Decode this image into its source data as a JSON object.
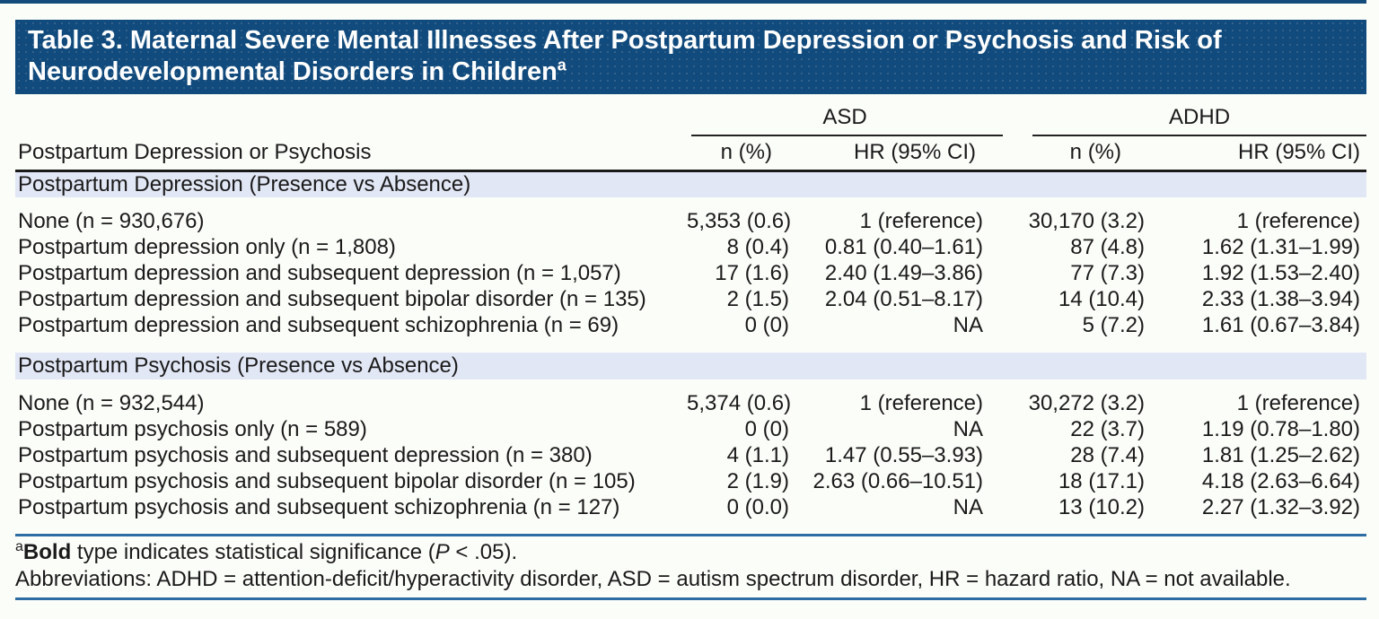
{
  "title": {
    "line1": "Table 3. Maternal Severe Mental Illnesses After Postpartum Depression or Psychosis and Risk of",
    "line2": "Neurodevelopmental Disorders in Children",
    "superscript": "a"
  },
  "columns": {
    "stub": "Postpartum Depression or Psychosis",
    "groups": [
      {
        "label": "ASD"
      },
      {
        "label": "ADHD"
      }
    ],
    "subheaders": [
      "n (%)",
      "HR (95% CI)",
      "n (%)",
      "HR (95% CI)"
    ]
  },
  "sections": [
    {
      "header": "Postpartum Depression (Presence vs Absence)",
      "rows": [
        {
          "label": "None (n = 930,676)",
          "cells": [
            {
              "t": "5,353 (0.6)"
            },
            {
              "t": "1 (reference)"
            },
            {
              "t": "30,170 (3.2)"
            },
            {
              "t": "1 (reference)"
            }
          ]
        },
        {
          "label": "Postpartum depression only (n = 1,808)",
          "cells": [
            {
              "t": "8 (0.4)"
            },
            {
              "t": "0.81 (0.40–1.61)"
            },
            {
              "t": "87 (4.8)"
            },
            {
              "t": "1.62 (1.31–1.99)",
              "bold": true
            }
          ]
        },
        {
          "label": "Postpartum depression and subsequent depression (n = 1,057)",
          "cells": [
            {
              "t": "17 (1.6)"
            },
            {
              "t": "2.40 (1.49–3.86)",
              "bold": true
            },
            {
              "t": "77 (7.3)"
            },
            {
              "t": "1.92 (1.53–2.40)",
              "bold": true
            }
          ]
        },
        {
          "label": "Postpartum depression and subsequent bipolar disorder (n = 135)",
          "cells": [
            {
              "t": "2 (1.5)"
            },
            {
              "t": "2.04 (0.51–8.17)"
            },
            {
              "t": "14 (10.4)"
            },
            {
              "t": "2.33 (1.38–3.94)",
              "bold": true
            }
          ]
        },
        {
          "label": "Postpartum depression and subsequent schizophrenia (n = 69)",
          "cells": [
            {
              "t": "0 (0)"
            },
            {
              "t": "NA"
            },
            {
              "t": "5 (7.2)"
            },
            {
              "t": "1.61 (0.67–3.84)"
            }
          ]
        }
      ]
    },
    {
      "header": "Postpartum Psychosis (Presence vs Absence)",
      "rows": [
        {
          "label": "None (n = 932,544)",
          "cells": [
            {
              "t": "5,374 (0.6)"
            },
            {
              "t": "1 (reference)"
            },
            {
              "t": "30,272 (3.2)"
            },
            {
              "t": "1 (reference)"
            }
          ]
        },
        {
          "label": "Postpartum psychosis only (n = 589)",
          "cells": [
            {
              "t": "0 (0)"
            },
            {
              "t": "NA"
            },
            {
              "t": "22 (3.7)"
            },
            {
              "t": "1.19 (0.78–1.80)"
            }
          ]
        },
        {
          "label": "Postpartum psychosis and subsequent depression (n = 380)",
          "cells": [
            {
              "t": "4 (1.1)"
            },
            {
              "t": "1.47 (0.55–3.93)"
            },
            {
              "t": "28 (7.4)"
            },
            {
              "t": "1.81 (1.25–2.62)",
              "bold": true
            }
          ]
        },
        {
          "label": "Postpartum psychosis and subsequent bipolar disorder (n = 105)",
          "cells": [
            {
              "t": "2 (1.9)"
            },
            {
              "t": "2.63 (0.66–10.51)"
            },
            {
              "t": "18 (17.1)"
            },
            {
              "t": "4.18 (2.63–6.64)",
              "bold": true
            }
          ]
        },
        {
          "label": "Postpartum psychosis and subsequent schizophrenia (n = 127)",
          "cells": [
            {
              "t": "0 (0.0)"
            },
            {
              "t": "NA"
            },
            {
              "t": "13 (10.2)"
            },
            {
              "t": "2.27 (1.32–3.92)",
              "bold": true
            }
          ]
        }
      ]
    }
  ],
  "footnotes": {
    "sig_sup": "a",
    "sig_bold": "Bold",
    "sig_text_1": " type indicates statistical significance (",
    "sig_italic": "P",
    "sig_text_2": " < .05).",
    "abbreviations": "Abbreviations: ADHD = attention-deficit/hyperactivity disorder, ASD = autism spectrum disorder, HR = hazard ratio, NA = not available."
  },
  "colors": {
    "title_bar": "#114a7c",
    "title_text": "#ffffff",
    "section_row_bg": "#e2e7f5",
    "rule_blue": "#2e6da3",
    "rule_dark": "#1a1a1a",
    "body_text": "#1a1a1a",
    "page_bg": "#fbfdf9"
  }
}
